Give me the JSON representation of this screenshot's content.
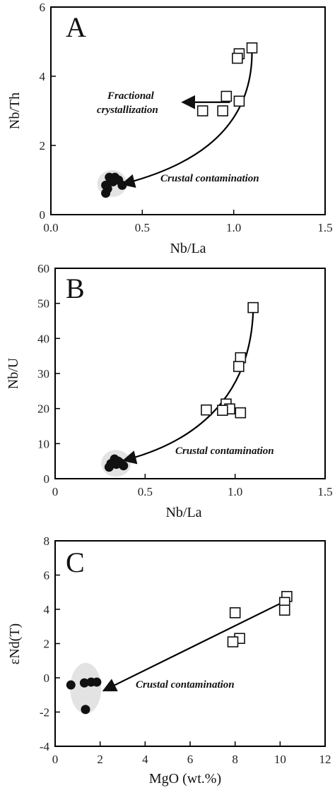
{
  "chart_data": [
    {
      "type": "scatter",
      "panel": "A",
      "xlabel": "Nb/La",
      "ylabel": "Nb/Th",
      "xlim": [
        0.0,
        1.5
      ],
      "ylim": [
        0,
        6
      ],
      "xticks": [
        "0.0",
        "0.5",
        "1.0",
        "1.5"
      ],
      "yticks": [
        "0",
        "2",
        "4",
        "6"
      ],
      "grid": false,
      "series": [
        {
          "marker": "open-square",
          "color": "#111111",
          "x": [
            1.1,
            1.03,
            1.02,
            0.96,
            1.03,
            0.83,
            0.94
          ],
          "y": [
            4.82,
            4.65,
            4.52,
            3.42,
            3.28,
            3.0,
            3.0
          ]
        },
        {
          "marker": "filled-circle",
          "color": "#111111",
          "x": [
            0.32,
            0.35,
            0.3,
            0.34,
            0.37,
            0.31,
            0.39,
            0.3
          ],
          "y": [
            1.08,
            1.08,
            0.85,
            0.95,
            1.0,
            0.75,
            0.85,
            0.62
          ]
        }
      ],
      "annotations": [
        {
          "text": "Fractional",
          "x": 0.54,
          "y": 3.4
        },
        {
          "text": "crystallization",
          "x": 0.54,
          "y": 3.0
        },
        {
          "text": "Crustal contamination",
          "x": 0.95,
          "y": 1.05
        }
      ]
    },
    {
      "type": "scatter",
      "panel": "B",
      "xlabel": "Nb/La",
      "ylabel": "Nb/U",
      "xlim": [
        0.0,
        1.5
      ],
      "ylim": [
        0,
        60
      ],
      "xticks": [
        "0",
        "0.5",
        "1.0",
        "1.5"
      ],
      "yticks": [
        "0",
        "10",
        "20",
        "30",
        "40",
        "50",
        "60"
      ],
      "grid": false,
      "series": [
        {
          "marker": "open-square",
          "color": "#111111",
          "x": [
            1.1,
            1.03,
            1.02,
            0.95,
            0.97,
            0.93,
            1.03,
            0.84
          ],
          "y": [
            48.8,
            34.5,
            32.0,
            21.3,
            19.9,
            19.5,
            18.8,
            19.6
          ]
        },
        {
          "marker": "filled-circle",
          "color": "#111111",
          "x": [
            0.33,
            0.35,
            0.31,
            0.36,
            0.38,
            0.3,
            0.34
          ],
          "y": [
            5.6,
            5.0,
            4.3,
            4.6,
            3.7,
            3.3,
            4.1
          ]
        }
      ],
      "annotations": [
        {
          "text": "Crustal contamination",
          "x": 0.96,
          "y": 7.5
        }
      ]
    },
    {
      "type": "scatter",
      "panel": "C",
      "xlabel": "MgO (wt.%)",
      "ylabel": "εNd(T)",
      "xlim": [
        0,
        12
      ],
      "ylim": [
        -4,
        8
      ],
      "xticks": [
        "0",
        "2",
        "4",
        "6",
        "8",
        "10",
        "12"
      ],
      "yticks": [
        "-4",
        "-2",
        "0",
        "2",
        "4",
        "6",
        "8"
      ],
      "grid": false,
      "series": [
        {
          "marker": "open-square",
          "color": "#111111",
          "x": [
            10.3,
            10.2,
            10.2,
            8.0,
            8.2,
            7.9
          ],
          "y": [
            4.75,
            4.4,
            3.95,
            3.8,
            2.3,
            2.1
          ]
        },
        {
          "marker": "filled-circle",
          "color": "#111111",
          "x": [
            0.7,
            1.3,
            1.6,
            1.85,
            1.35
          ],
          "y": [
            -0.42,
            -0.3,
            -0.25,
            -0.25,
            -1.85
          ]
        }
      ],
      "annotations": [
        {
          "text": "Crustal contamination",
          "x": 3.6,
          "y": -0.2
        }
      ]
    }
  ]
}
